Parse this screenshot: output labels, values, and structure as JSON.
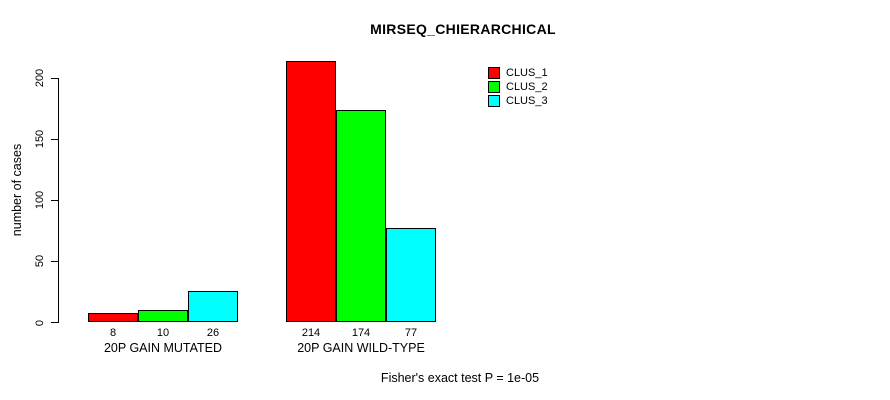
{
  "chart_data": {
    "type": "bar",
    "title": "MIRSEQ_CHIERARCHICAL",
    "ylabel": "number of cases",
    "xlabel": "",
    "categories": [
      "20P GAIN MUTATED",
      "20P GAIN WILD-TYPE"
    ],
    "series": [
      {
        "name": "CLUS_1",
        "color": "#ff0000",
        "values": [
          8,
          214
        ]
      },
      {
        "name": "CLUS_2",
        "color": "#00ff00",
        "values": [
          10,
          174
        ]
      },
      {
        "name": "CLUS_3",
        "color": "#00ffff",
        "values": [
          26,
          77
        ]
      }
    ],
    "yticks": [
      0,
      50,
      100,
      150,
      200
    ],
    "ylim": [
      0,
      200
    ],
    "show_bar_values": true,
    "grid": false,
    "legend_position": "top-right",
    "annotation": "Fisher's exact test P = 1e-05",
    "axis_color": "#000000",
    "background_color": "#ffffff"
  }
}
